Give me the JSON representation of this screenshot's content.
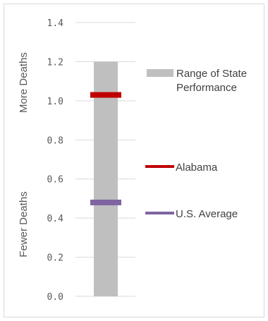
{
  "chart_data": {
    "type": "bar",
    "y_ticks": [
      "0.0",
      "0.2",
      "0.4",
      "0.6",
      "0.8",
      "1.0",
      "1.2",
      "1.4"
    ],
    "ylim": [
      0,
      1.4
    ],
    "grid": true,
    "range": {
      "name": "Range of State Performance",
      "name_lines": [
        "Range of State",
        "Performance"
      ],
      "low": 0.0,
      "high": 1.2,
      "color": "#bfbfbf"
    },
    "markers": [
      {
        "name": "Alabama",
        "value": 1.03,
        "color": "#c00000"
      },
      {
        "name": "U.S. Average",
        "value": 0.48,
        "color": "#8064a2"
      }
    ],
    "side_labels": {
      "top": "More Deaths",
      "bottom": "Fewer Deaths"
    },
    "legend_position": "right"
  }
}
